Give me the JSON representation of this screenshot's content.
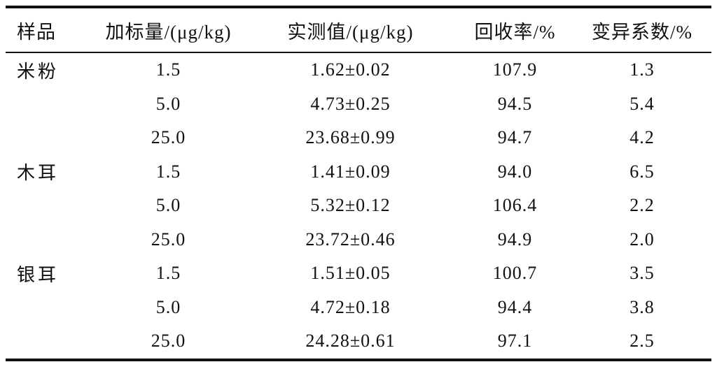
{
  "table": {
    "columns": {
      "sample": "样品",
      "spiked": "加标量/(μg/kg)",
      "measured": "实测值/(μg/kg)",
      "recovery": "回收率/%",
      "cv": "变异系数/%"
    },
    "rows": [
      {
        "sample": "米粉",
        "spiked": "1.5",
        "measured": "1.62±0.02",
        "recovery": "107.9",
        "cv": "1.3"
      },
      {
        "sample": "",
        "spiked": "5.0",
        "measured": "4.73±0.25",
        "recovery": "94.5",
        "cv": "5.4"
      },
      {
        "sample": "",
        "spiked": "25.0",
        "measured": "23.68±0.99",
        "recovery": "94.7",
        "cv": "4.2"
      },
      {
        "sample": "木耳",
        "spiked": "1.5",
        "measured": "1.41±0.09",
        "recovery": "94.0",
        "cv": "6.5"
      },
      {
        "sample": "",
        "spiked": "5.0",
        "measured": "5.32±0.12",
        "recovery": "106.4",
        "cv": "2.2"
      },
      {
        "sample": "",
        "spiked": "25.0",
        "measured": "23.72±0.46",
        "recovery": "94.9",
        "cv": "2.0"
      },
      {
        "sample": "银耳",
        "spiked": "1.5",
        "measured": "1.51±0.05",
        "recovery": "100.7",
        "cv": "3.5"
      },
      {
        "sample": "",
        "spiked": "5.0",
        "measured": "4.72±0.18",
        "recovery": "94.4",
        "cv": "3.8"
      },
      {
        "sample": "",
        "spiked": "25.0",
        "measured": "24.28±0.61",
        "recovery": "97.1",
        "cv": "2.5"
      }
    ]
  },
  "colors": {
    "text": "#111111",
    "rule": "#111111",
    "background": "#ffffff"
  }
}
